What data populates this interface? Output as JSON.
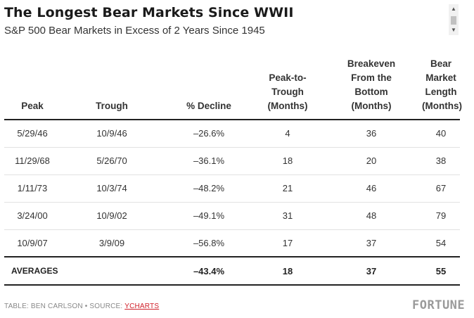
{
  "chart_data": {
    "type": "table",
    "title": "The Longest Bear Markets Since WWII",
    "subtitle": "S&P 500 Bear Markets in Excess of 2 Years Since 1945",
    "columns": [
      [
        "Peak"
      ],
      [
        "Trough"
      ],
      [
        "% Decline"
      ],
      [
        "Peak-to-",
        "Trough",
        "(Months)"
      ],
      [
        "Breakeven",
        "From the",
        "Bottom",
        "(Months)"
      ],
      [
        "Bear",
        "Market",
        "Length",
        "(Months)"
      ]
    ],
    "rows": [
      [
        "5/29/46",
        "10/9/46",
        "–26.6%",
        "4",
        "36",
        "40"
      ],
      [
        "11/29/68",
        "5/26/70",
        "–36.1%",
        "18",
        "20",
        "38"
      ],
      [
        "1/11/73",
        "10/3/74",
        "–48.2%",
        "21",
        "46",
        "67"
      ],
      [
        "3/24/00",
        "10/9/02",
        "–49.1%",
        "31",
        "48",
        "79"
      ],
      [
        "10/9/07",
        "3/9/09",
        "–56.8%",
        "17",
        "37",
        "54"
      ]
    ],
    "averages": {
      "label": "AVERAGES",
      "values": [
        "",
        "–43.4%",
        "18",
        "37",
        "55"
      ]
    }
  },
  "footer": {
    "prefix": "TABLE: BEN CARLSON • SOURCE: ",
    "source_link": "YCHARTS"
  },
  "brand": "FORTUNE",
  "scrollbar": {
    "up_glyph": "▲",
    "down_glyph": "▼"
  }
}
